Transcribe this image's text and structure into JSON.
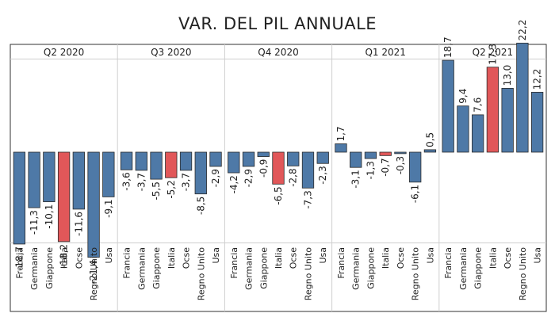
{
  "title": "VAR. DEL PIL ANNUALE",
  "colors": {
    "bar": "#4e79a7",
    "highlight": "#e15759",
    "border": "#333333",
    "divider": "#cfcfcf"
  },
  "chart_data": {
    "type": "bar",
    "title": "VAR. DEL PIL ANNUALE",
    "categories": [
      "Francia",
      "Germania",
      "Giappone",
      "Italia",
      "Ocse",
      "Regno Unito",
      "Usa"
    ],
    "highlight_category": "Italia",
    "ylim": [
      -24,
      26
    ],
    "grid": false,
    "panels": [
      {
        "name": "Q2 2020",
        "values": [
          -18.7,
          -11.3,
          -10.1,
          -18.2,
          -11.6,
          -21.4,
          -9.1
        ],
        "labels": [
          "-18,7",
          "-11,3",
          "-10,1",
          "-18,2",
          "-11,6",
          "-21,4",
          "-9,1"
        ]
      },
      {
        "name": "Q3 2020",
        "values": [
          -3.6,
          -3.7,
          -5.5,
          -5.2,
          -3.7,
          -8.5,
          -2.9
        ],
        "labels": [
          "-3,6",
          "-3,7",
          "-5,5",
          "-5,2",
          "-3,7",
          "-8,5",
          "-2,9"
        ]
      },
      {
        "name": "Q4 2020",
        "values": [
          -4.2,
          -2.9,
          -0.9,
          -6.5,
          -2.8,
          -7.3,
          -2.3
        ],
        "labels": [
          "-4,2",
          "-2,9",
          "-0,9",
          "-6,5",
          "-2,8",
          "-7,3",
          "-2,3"
        ]
      },
      {
        "name": "Q1 2021",
        "values": [
          1.7,
          -3.1,
          -1.3,
          -0.7,
          -0.3,
          -6.1,
          0.5
        ],
        "labels": [
          "1,7",
          "-3,1",
          "-1,3",
          "-0,7",
          "-0,3",
          "-6,1",
          "0,5"
        ]
      },
      {
        "name": "Q2 2021",
        "values": [
          18.7,
          9.4,
          7.6,
          17.3,
          13.0,
          22.2,
          12.2
        ],
        "labels": [
          "18,7",
          "9,4",
          "7,6",
          "17,3",
          "13,0",
          "22,2",
          "12,2"
        ]
      }
    ]
  }
}
